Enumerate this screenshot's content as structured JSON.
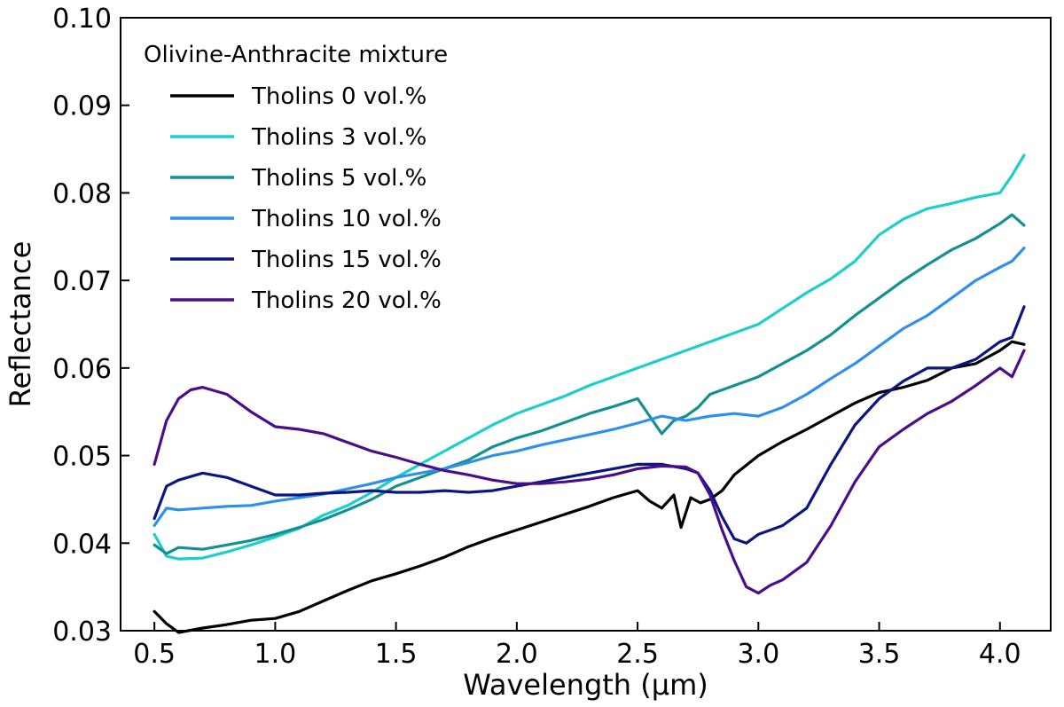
{
  "chart_data": {
    "type": "line",
    "title": "",
    "xlabel": "Wavelength (µm)",
    "ylabel": "Reflectance",
    "xlim": [
      0.36,
      4.21
    ],
    "ylim": [
      0.03,
      0.1
    ],
    "xticks": [
      0.5,
      1.0,
      1.5,
      2.0,
      2.5,
      3.0,
      3.5,
      4.0
    ],
    "xtick_labels": [
      "0.5",
      "1.0",
      "1.5",
      "2.0",
      "2.5",
      "3.0",
      "3.5",
      "4.0"
    ],
    "yticks": [
      0.03,
      0.04,
      0.05,
      0.06,
      0.07,
      0.08,
      0.09,
      0.1
    ],
    "ytick_labels": [
      "0.03",
      "0.04",
      "0.05",
      "0.06",
      "0.07",
      "0.08",
      "0.09",
      "0.10"
    ],
    "grid": false,
    "legend": {
      "title": "Olivine-Anthracite mixture",
      "position": "top-left"
    },
    "series": [
      {
        "name": "Tholins 0 vol.%",
        "color": "#000000",
        "x": [
          0.5,
          0.55,
          0.6,
          0.7,
          0.8,
          0.9,
          1.0,
          1.1,
          1.2,
          1.3,
          1.4,
          1.5,
          1.6,
          1.7,
          1.8,
          1.9,
          2.0,
          2.1,
          2.2,
          2.3,
          2.4,
          2.5,
          2.55,
          2.6,
          2.65,
          2.68,
          2.72,
          2.76,
          2.8,
          2.85,
          2.9,
          3.0,
          3.1,
          3.2,
          3.3,
          3.4,
          3.5,
          3.6,
          3.7,
          3.8,
          3.9,
          4.0,
          4.05,
          4.1
        ],
        "y": [
          0.0322,
          0.0308,
          0.0298,
          0.0303,
          0.0307,
          0.0312,
          0.0314,
          0.0322,
          0.0334,
          0.0346,
          0.0357,
          0.0365,
          0.0374,
          0.0384,
          0.0396,
          0.0406,
          0.0415,
          0.0424,
          0.0433,
          0.0442,
          0.0452,
          0.046,
          0.0448,
          0.044,
          0.0455,
          0.0418,
          0.0452,
          0.0446,
          0.045,
          0.046,
          0.0478,
          0.05,
          0.0516,
          0.053,
          0.0545,
          0.056,
          0.0572,
          0.0578,
          0.0586,
          0.06,
          0.0605,
          0.062,
          0.063,
          0.0627
        ]
      },
      {
        "name": "Tholins 3 vol.%",
        "color": "#1fcdcd",
        "x": [
          0.5,
          0.55,
          0.6,
          0.7,
          0.8,
          0.9,
          1.0,
          1.1,
          1.2,
          1.3,
          1.4,
          1.5,
          1.6,
          1.7,
          1.8,
          1.9,
          2.0,
          2.1,
          2.2,
          2.3,
          2.4,
          2.5,
          2.6,
          2.7,
          2.8,
          2.9,
          3.0,
          3.1,
          3.2,
          3.3,
          3.4,
          3.5,
          3.6,
          3.7,
          3.8,
          3.9,
          4.0,
          4.05,
          4.1
        ],
        "y": [
          0.041,
          0.0385,
          0.0382,
          0.0383,
          0.039,
          0.0398,
          0.0407,
          0.0417,
          0.0432,
          0.0443,
          0.0458,
          0.0475,
          0.049,
          0.0505,
          0.052,
          0.0535,
          0.0548,
          0.0558,
          0.0568,
          0.058,
          0.059,
          0.06,
          0.061,
          0.062,
          0.063,
          0.064,
          0.065,
          0.0668,
          0.0686,
          0.0702,
          0.0722,
          0.0752,
          0.077,
          0.0782,
          0.0788,
          0.0795,
          0.08,
          0.082,
          0.0843
        ]
      },
      {
        "name": "Tholins 5 vol.%",
        "color": "#139191",
        "x": [
          0.5,
          0.55,
          0.6,
          0.7,
          0.8,
          0.9,
          1.0,
          1.1,
          1.2,
          1.3,
          1.4,
          1.5,
          1.6,
          1.7,
          1.8,
          1.9,
          2.0,
          2.1,
          2.2,
          2.3,
          2.4,
          2.5,
          2.55,
          2.6,
          2.65,
          2.7,
          2.75,
          2.8,
          2.9,
          3.0,
          3.1,
          3.2,
          3.3,
          3.4,
          3.5,
          3.6,
          3.7,
          3.8,
          3.9,
          4.0,
          4.05,
          4.1
        ],
        "y": [
          0.0398,
          0.0388,
          0.0395,
          0.0393,
          0.0398,
          0.0403,
          0.041,
          0.0418,
          0.0427,
          0.0438,
          0.045,
          0.0465,
          0.0475,
          0.0485,
          0.0495,
          0.051,
          0.052,
          0.0528,
          0.0538,
          0.0548,
          0.0556,
          0.0565,
          0.0545,
          0.0525,
          0.054,
          0.0545,
          0.0555,
          0.057,
          0.058,
          0.059,
          0.0605,
          0.062,
          0.0638,
          0.066,
          0.068,
          0.07,
          0.0718,
          0.0735,
          0.0748,
          0.0765,
          0.0775,
          0.0763
        ]
      },
      {
        "name": "Tholins 10 vol.%",
        "color": "#3090e8",
        "x": [
          0.5,
          0.55,
          0.6,
          0.7,
          0.8,
          0.9,
          1.0,
          1.1,
          1.2,
          1.3,
          1.4,
          1.5,
          1.6,
          1.7,
          1.8,
          1.9,
          2.0,
          2.1,
          2.2,
          2.3,
          2.4,
          2.5,
          2.6,
          2.7,
          2.8,
          2.9,
          3.0,
          3.1,
          3.2,
          3.3,
          3.4,
          3.5,
          3.6,
          3.7,
          3.8,
          3.9,
          4.0,
          4.05,
          4.1
        ],
        "y": [
          0.042,
          0.044,
          0.0438,
          0.044,
          0.0442,
          0.0443,
          0.0448,
          0.0452,
          0.0456,
          0.0462,
          0.0468,
          0.0475,
          0.048,
          0.0485,
          0.0492,
          0.05,
          0.0505,
          0.0512,
          0.0518,
          0.0524,
          0.053,
          0.0537,
          0.0545,
          0.054,
          0.0545,
          0.0548,
          0.0545,
          0.0555,
          0.057,
          0.0588,
          0.0605,
          0.0625,
          0.0645,
          0.066,
          0.068,
          0.07,
          0.0715,
          0.0722,
          0.0737
        ]
      },
      {
        "name": "Tholins 15 vol.%",
        "color": "#0c1680",
        "x": [
          0.5,
          0.55,
          0.6,
          0.7,
          0.8,
          0.9,
          1.0,
          1.1,
          1.2,
          1.3,
          1.4,
          1.5,
          1.6,
          1.7,
          1.8,
          1.9,
          2.0,
          2.1,
          2.2,
          2.3,
          2.4,
          2.5,
          2.6,
          2.7,
          2.75,
          2.8,
          2.85,
          2.9,
          2.95,
          3.0,
          3.05,
          3.1,
          3.2,
          3.3,
          3.4,
          3.5,
          3.6,
          3.7,
          3.8,
          3.9,
          4.0,
          4.05,
          4.1
        ],
        "y": [
          0.0428,
          0.0465,
          0.0472,
          0.048,
          0.0475,
          0.0465,
          0.0455,
          0.0455,
          0.0457,
          0.0458,
          0.046,
          0.0458,
          0.0458,
          0.046,
          0.0458,
          0.046,
          0.0465,
          0.047,
          0.0475,
          0.048,
          0.0485,
          0.049,
          0.049,
          0.0485,
          0.048,
          0.046,
          0.043,
          0.0405,
          0.04,
          0.041,
          0.0415,
          0.042,
          0.044,
          0.049,
          0.0535,
          0.0565,
          0.0585,
          0.06,
          0.06,
          0.061,
          0.063,
          0.0635,
          0.067
        ]
      },
      {
        "name": "Tholins 20 vol.%",
        "color": "#4a0f88",
        "x": [
          0.5,
          0.55,
          0.6,
          0.65,
          0.7,
          0.8,
          0.9,
          1.0,
          1.1,
          1.2,
          1.3,
          1.4,
          1.5,
          1.6,
          1.7,
          1.8,
          1.9,
          2.0,
          2.1,
          2.2,
          2.3,
          2.4,
          2.5,
          2.6,
          2.7,
          2.75,
          2.8,
          2.85,
          2.9,
          2.95,
          3.0,
          3.05,
          3.1,
          3.2,
          3.3,
          3.4,
          3.5,
          3.6,
          3.7,
          3.8,
          3.9,
          4.0,
          4.05,
          4.1
        ],
        "y": [
          0.049,
          0.054,
          0.0565,
          0.0575,
          0.0578,
          0.057,
          0.055,
          0.0533,
          0.053,
          0.0525,
          0.0515,
          0.0505,
          0.0498,
          0.049,
          0.0483,
          0.0478,
          0.0472,
          0.0468,
          0.0468,
          0.047,
          0.0473,
          0.0478,
          0.0485,
          0.0488,
          0.0487,
          0.048,
          0.0455,
          0.0415,
          0.038,
          0.035,
          0.0343,
          0.0352,
          0.0358,
          0.0378,
          0.042,
          0.047,
          0.051,
          0.053,
          0.0548,
          0.0562,
          0.058,
          0.06,
          0.059,
          0.062
        ]
      }
    ]
  }
}
